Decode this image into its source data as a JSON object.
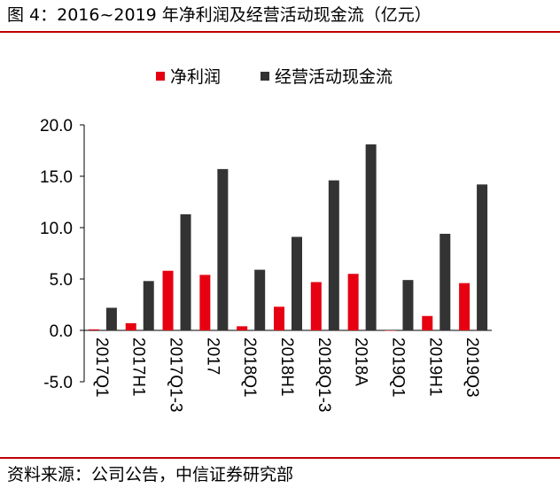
{
  "figure_title": "图 4：2016~2019 年净利润及经营活动现金流（亿元）",
  "source": "资料来源：公司公告，中信证券研究部",
  "colors": {
    "rule": "#c00000",
    "net_profit": "#e60012",
    "operating_cash_flow": "#333333"
  },
  "chart_data": {
    "type": "bar",
    "title": "",
    "xlabel": "",
    "ylabel": "",
    "categories": [
      "2017Q1",
      "2017H1",
      "2017Q1-3",
      "2017",
      "2018Q1",
      "2018H1",
      "2018Q1-3",
      "2018A",
      "2019Q1",
      "2019H1",
      "2019Q3"
    ],
    "series": [
      {
        "name": "净利润",
        "values": [
          0.1,
          0.7,
          5.8,
          5.4,
          0.4,
          2.3,
          4.7,
          5.5,
          0.0,
          1.4,
          4.6
        ]
      },
      {
        "name": "经营活动现金流",
        "values": [
          2.2,
          4.8,
          11.3,
          15.7,
          5.9,
          9.1,
          14.6,
          18.1,
          4.9,
          9.4,
          14.2
        ]
      }
    ],
    "ylim": [
      -5,
      20
    ],
    "yticks": [
      "-5.0",
      "0.0",
      "5.0",
      "10.0",
      "15.0",
      "20.0"
    ],
    "grid": false,
    "legend_position": "top-center"
  }
}
